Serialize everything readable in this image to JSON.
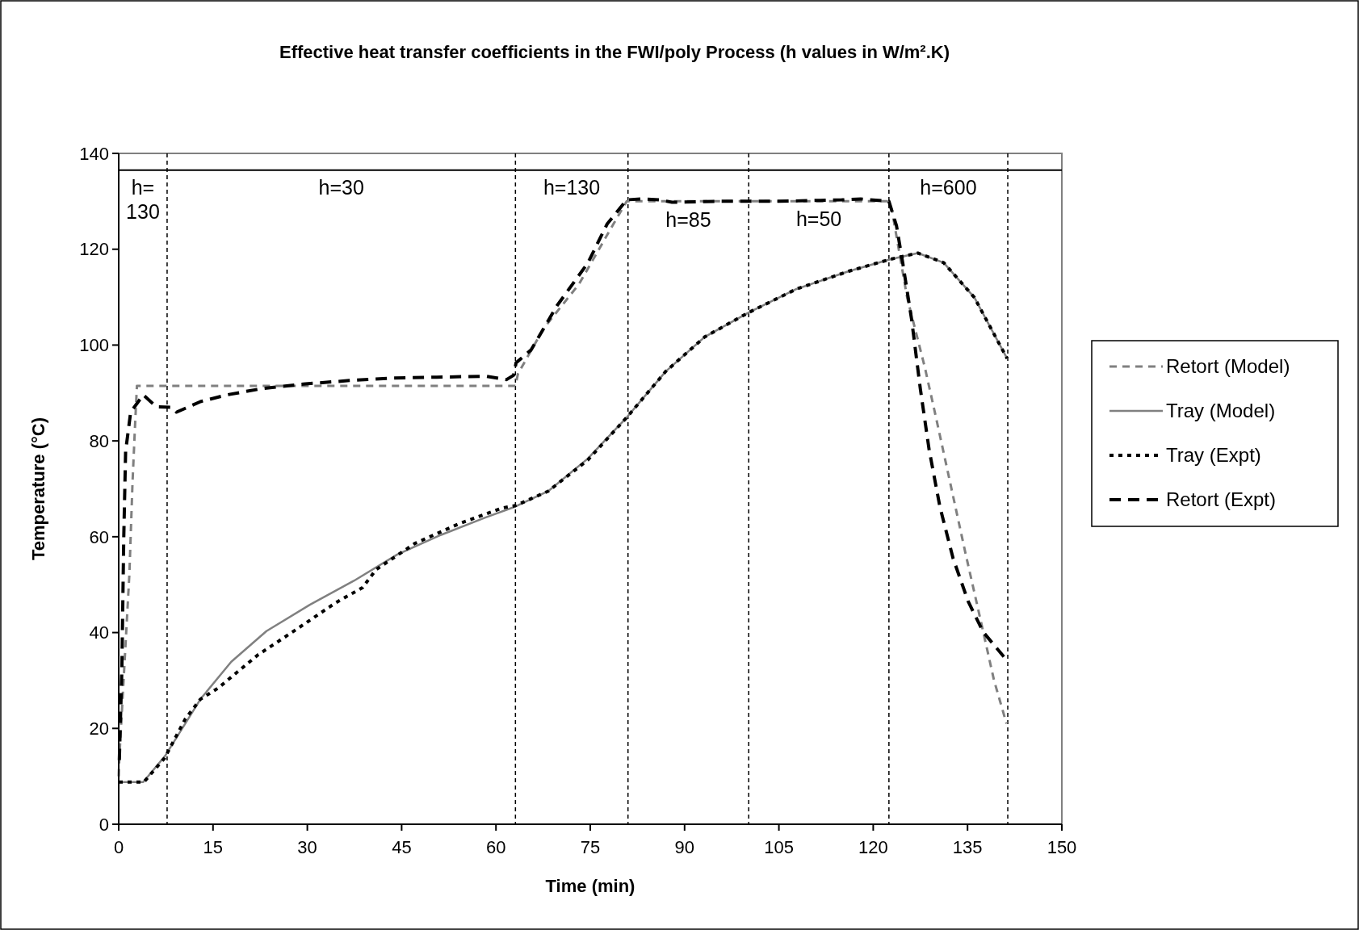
{
  "chart_data": {
    "type": "line",
    "title": "Effective heat transfer coefficients in the FWI/poly Process (h values in W/m².K)",
    "xlabel": "Time (min)",
    "ylabel": "Temperature (°C)",
    "xlim": [
      0,
      150
    ],
    "xticks": [
      0,
      15,
      30,
      45,
      60,
      75,
      90,
      105,
      120,
      135,
      150
    ],
    "ylim": [
      0,
      140
    ],
    "yticks": [
      0,
      20,
      40,
      60,
      80,
      100,
      120,
      140
    ],
    "grid": false,
    "legend": "right",
    "marker": "none",
    "series": [
      {
        "name": "Retort (Model)",
        "color": "#808080",
        "line_style": "dashed",
        "x": [
          0,
          0.1,
          1.7,
          2.2,
          2.6,
          2.9,
          63.1,
          63.5,
          67.6,
          73.2,
          78.7,
          80.8,
          85,
          100,
          122.5,
          123,
          125.4,
          128.2,
          129.9,
          132.3,
          134.7,
          137.2,
          139.2,
          141.2
        ],
        "values": [
          10,
          13.8,
          52.2,
          71.4,
          83.2,
          91.5,
          91.5,
          94,
          103.5,
          112.7,
          125.3,
          130,
          130,
          130,
          130,
          128,
          109.9,
          95.4,
          85.4,
          70.9,
          56.4,
          41.9,
          30.1,
          21
        ]
      },
      {
        "name": "Tray (Model)",
        "color": "#808080",
        "line_style": "solid",
        "x": [
          0,
          3.9,
          7.4,
          13,
          17.9,
          23.5,
          30.4,
          37.4,
          44.3,
          51.3,
          58.3,
          63.1,
          68.3,
          74.6,
          80.8,
          87,
          93.2,
          100.2,
          107.8,
          116.1,
          122.7,
          127.1,
          131.2,
          136.1,
          141.3
        ],
        "values": [
          8.8,
          8.8,
          14.3,
          26.1,
          33.9,
          40.3,
          45.8,
          50.8,
          56.3,
          60.4,
          64,
          66.3,
          69.5,
          76.3,
          84.9,
          94.5,
          101.7,
          106.8,
          111.7,
          115.4,
          117.9,
          119.2,
          117.2,
          109.9,
          97.2
        ]
      },
      {
        "name": "Tray (Expt)",
        "color": "#000000",
        "line_style": "dotted",
        "x": [
          0,
          4,
          7.3,
          10.6,
          13,
          15.8,
          22.1,
          28.3,
          34.6,
          38.8,
          40.9,
          47.1,
          54.1,
          61,
          63.1,
          68.3,
          74.6,
          80.8,
          87,
          93.2,
          100.2,
          107.8,
          116.1,
          122.7,
          127.1,
          131.2,
          136.1,
          141.3
        ],
        "values": [
          8.8,
          8.8,
          13.8,
          22,
          26.1,
          28.4,
          35.3,
          40.7,
          46.3,
          49.4,
          53.1,
          58.6,
          62.7,
          66,
          66.5,
          69.5,
          76,
          84.9,
          94.5,
          101.7,
          106.8,
          111.7,
          115.4,
          117.9,
          119.2,
          117.2,
          109.9,
          97.2
        ]
      },
      {
        "name": "Retort (Expt)",
        "color": "#000000",
        "line_style": "dashed",
        "x": [
          0.1,
          0.5,
          0.8,
          1.1,
          1.9,
          3.9,
          6,
          8.5,
          9.2,
          13,
          17.2,
          22.7,
          29.7,
          36.7,
          43.6,
          50.6,
          58.3,
          61.7,
          62.8,
          63.2,
          65.6,
          69.7,
          74.6,
          77.7,
          80.8,
          83,
          86,
          88,
          95,
          105,
          115,
          118,
          122.5,
          123.7,
          124.7,
          126.1,
          127.5,
          128.9,
          130.6,
          132.7,
          135.1,
          137.5,
          141
        ],
        "values": [
          13.4,
          32.1,
          59.5,
          77.8,
          86,
          89.6,
          87.1,
          87,
          86,
          88.2,
          89.6,
          90.9,
          91.9,
          92.6,
          93.1,
          93.3,
          93.5,
          92.8,
          93.7,
          96.3,
          99,
          108.2,
          117.1,
          125.3,
          130.3,
          130.5,
          130.3,
          129.8,
          130,
          130,
          130.3,
          130.5,
          130,
          124.9,
          117.1,
          105.4,
          90.8,
          78.1,
          66.3,
          55.5,
          46.5,
          40.1,
          34.6
        ]
      }
    ],
    "ref_lines": [
      {
        "axis": "x",
        "value": 7.7,
        "line_style": "dashed",
        "color": "#000000"
      },
      {
        "axis": "x",
        "value": 63.1,
        "line_style": "dashed",
        "color": "#000000"
      },
      {
        "axis": "x",
        "value": 81,
        "line_style": "dashed",
        "color": "#000000"
      },
      {
        "axis": "x",
        "value": 100.2,
        "line_style": "dashed",
        "color": "#000000"
      },
      {
        "axis": "x",
        "value": 122.5,
        "line_style": "dashed",
        "color": "#000000"
      },
      {
        "axis": "x",
        "value": 141.4,
        "line_style": "dashed",
        "color": "#000000"
      },
      {
        "axis": "y",
        "value": 136.5,
        "line_style": "solid",
        "color": "#000000"
      }
    ],
    "annotations": [
      "h= 130",
      "h=30",
      "h=130",
      "h=85",
      "h=50",
      "h=600"
    ]
  }
}
